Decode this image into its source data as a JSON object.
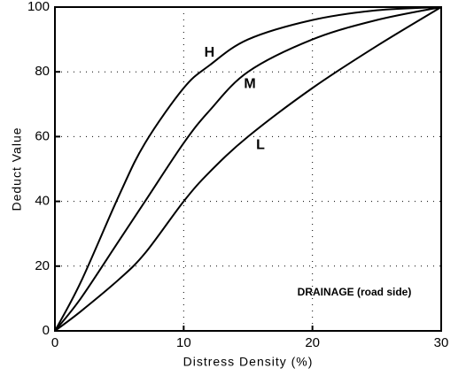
{
  "chart_data": {
    "type": "line",
    "x_label": "Distress Density (%)",
    "y_label": "Deduct Value",
    "annotation": "DRAINAGE (road side)",
    "x": [
      0,
      2,
      5,
      7,
      10,
      12,
      15,
      20,
      25,
      30
    ],
    "series": [
      {
        "name": "H",
        "color": "#000000",
        "values": [
          0,
          15,
          42,
          58,
          75,
          82,
          90,
          96,
          99,
          100
        ]
      },
      {
        "name": "M",
        "color": "#000000",
        "values": [
          0,
          10,
          28,
          40,
          58,
          68,
          80,
          90,
          96,
          100
        ]
      },
      {
        "name": "L",
        "color": "#000000",
        "values": [
          0,
          6,
          16,
          24,
          40,
          49,
          60,
          75,
          88,
          100
        ]
      }
    ],
    "xlim": [
      0,
      30
    ],
    "xticks": [
      0,
      10,
      20,
      30
    ],
    "ylim": [
      0,
      100
    ],
    "yticks": [
      0,
      20,
      40,
      60,
      80,
      100
    ],
    "grid": true
  }
}
